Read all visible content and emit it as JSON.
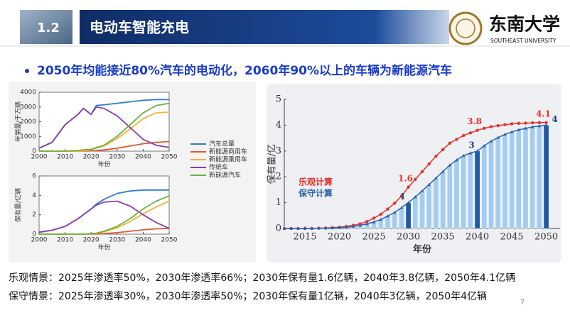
{
  "header": {
    "section": "1.2",
    "title": "电动车智能充电",
    "logo_cn": "东南大学",
    "logo_en": "SOUTHEAST UNIVERSITY"
  },
  "bullet": "2050年均能接近80%汽车的电动化，2060年90%以上的车辆为新能源汽车",
  "notes": [
    "乐观情景：2025年渗透率50%，2030年渗透率66%；2030年保有量1.6亿辆，2040年3.8亿辆，2050年4.1亿辆",
    "保守情景：2025年渗透率30%，2030年渗透率50%；2030年保有量1亿辆，2040年3亿辆，2050年4亿辆"
  ],
  "page": "7",
  "chart_data": [
    {
      "type": "line",
      "y_label": "年销量/千万辆",
      "x_label": "年份",
      "x": [
        2000,
        2005,
        2010,
        2015,
        2017,
        2020,
        2022,
        2025,
        2030,
        2035,
        2040,
        2045,
        2050
      ],
      "xlim": [
        2000,
        2050
      ],
      "xticks": [
        2000,
        2010,
        2020,
        2030,
        2040,
        2050
      ],
      "ylim": [
        0,
        4000
      ],
      "yticks": [
        0,
        1000,
        2000,
        3000,
        4000
      ],
      "series": [
        {
          "name": "汽车总量",
          "color": "#2c7bd6",
          "values": [
            200,
            600,
            1800,
            2500,
            2900,
            2500,
            3100,
            3150,
            3250,
            3350,
            3450,
            3500,
            3500
          ]
        },
        {
          "name": "新能源商用车",
          "color": "#e8562a",
          "values": [
            0,
            0,
            0,
            0,
            0,
            20,
            50,
            80,
            200,
            350,
            500,
            600,
            650
          ]
        },
        {
          "name": "新能源乘用车",
          "color": "#f0b33a",
          "values": [
            0,
            0,
            0,
            0,
            0,
            100,
            200,
            350,
            850,
            1500,
            2200,
            2600,
            2650
          ]
        },
        {
          "name": "传统车",
          "color": "#8b3aa8",
          "values": [
            200,
            600,
            1800,
            2500,
            2900,
            2500,
            3000,
            2900,
            2400,
            1600,
            800,
            400,
            250
          ]
        },
        {
          "name": "新能源汽车",
          "color": "#6ab23c",
          "values": [
            0,
            0,
            0,
            50,
            80,
            120,
            250,
            400,
            1000,
            1800,
            2600,
            3100,
            3250
          ]
        }
      ]
    },
    {
      "type": "line",
      "y_label": "保有量/亿辆",
      "x_label": "年份",
      "x": [
        2000,
        2005,
        2010,
        2015,
        2017,
        2020,
        2022,
        2025,
        2030,
        2035,
        2040,
        2045,
        2050
      ],
      "xlim": [
        2000,
        2050
      ],
      "xticks": [
        2000,
        2010,
        2020,
        2030,
        2040,
        2050
      ],
      "ylim": [
        0,
        6
      ],
      "yticks": [
        0,
        2,
        4,
        6
      ],
      "series": [
        {
          "color": "#2c7bd6",
          "values": [
            0.2,
            0.4,
            0.8,
            1.6,
            2,
            2.6,
            3.1,
            3.6,
            4.2,
            4.45,
            4.55,
            4.55,
            4.55
          ]
        },
        {
          "color": "#e8562a",
          "values": [
            0,
            0,
            0,
            0,
            0,
            0.01,
            0.02,
            0.05,
            0.15,
            0.3,
            0.45,
            0.55,
            0.6
          ]
        },
        {
          "color": "#f0b33a",
          "values": [
            0,
            0,
            0,
            0,
            0,
            0.04,
            0.08,
            0.25,
            0.65,
            1.3,
            2.1,
            2.8,
            3.4
          ]
        },
        {
          "color": "#8b3aa8",
          "values": [
            0.2,
            0.4,
            0.8,
            1.6,
            2,
            2.6,
            3,
            3.3,
            3.4,
            2.9,
            2,
            1.2,
            0.6
          ]
        },
        {
          "color": "#6ab23c",
          "values": [
            0,
            0,
            0,
            0,
            0,
            0.05,
            0.1,
            0.3,
            0.8,
            1.6,
            2.6,
            3.4,
            3.95
          ]
        }
      ]
    },
    {
      "type": "combo",
      "y_label": "保有量/亿",
      "x_label": "年份",
      "x": [
        2012,
        2013,
        2014,
        2015,
        2016,
        2017,
        2018,
        2019,
        2020,
        2021,
        2022,
        2023,
        2024,
        2025,
        2026,
        2027,
        2028,
        2029,
        2030,
        2031,
        2032,
        2033,
        2034,
        2035,
        2036,
        2037,
        2038,
        2039,
        2040,
        2041,
        2042,
        2043,
        2044,
        2045,
        2046,
        2047,
        2048,
        2049,
        2050
      ],
      "xlim": [
        2012,
        2052
      ],
      "xticks": [
        2015,
        2020,
        2025,
        2030,
        2035,
        2040,
        2045,
        2050
      ],
      "ylim": [
        0,
        5
      ],
      "yticks": [
        0,
        1,
        2,
        3,
        4,
        5
      ],
      "series": [
        {
          "name": "乐观计算",
          "color": "#e8302a",
          "style": "line",
          "labels_at": [
            2030,
            2040,
            2050
          ],
          "values": [
            0,
            0,
            0,
            0,
            0,
            0.01,
            0.02,
            0.03,
            0.05,
            0.08,
            0.12,
            0.18,
            0.27,
            0.4,
            0.55,
            0.75,
            0.98,
            1.25,
            1.6,
            1.9,
            2.2,
            2.5,
            2.8,
            3.05,
            3.3,
            3.45,
            3.6,
            3.7,
            3.8,
            3.88,
            3.94,
            3.98,
            4.02,
            4.05,
            4.07,
            4.08,
            4.09,
            4.1,
            4.1
          ]
        },
        {
          "name": "保守计算",
          "color": "#2a62b0",
          "bar_color": "#a3cdf0",
          "highlight_color": "#1f5aa6",
          "style": "bar_line",
          "labels_at": [
            2030,
            2040,
            2050
          ],
          "values": [
            0,
            0,
            0,
            0,
            0,
            0.01,
            0.01,
            0.02,
            0.03,
            0.05,
            0.08,
            0.12,
            0.18,
            0.25,
            0.35,
            0.48,
            0.62,
            0.8,
            1,
            1.22,
            1.45,
            1.7,
            1.95,
            2.2,
            2.45,
            2.65,
            2.82,
            2.92,
            3,
            3.2,
            3.38,
            3.52,
            3.64,
            3.74,
            3.82,
            3.88,
            3.93,
            3.97,
            4
          ]
        }
      ]
    }
  ]
}
